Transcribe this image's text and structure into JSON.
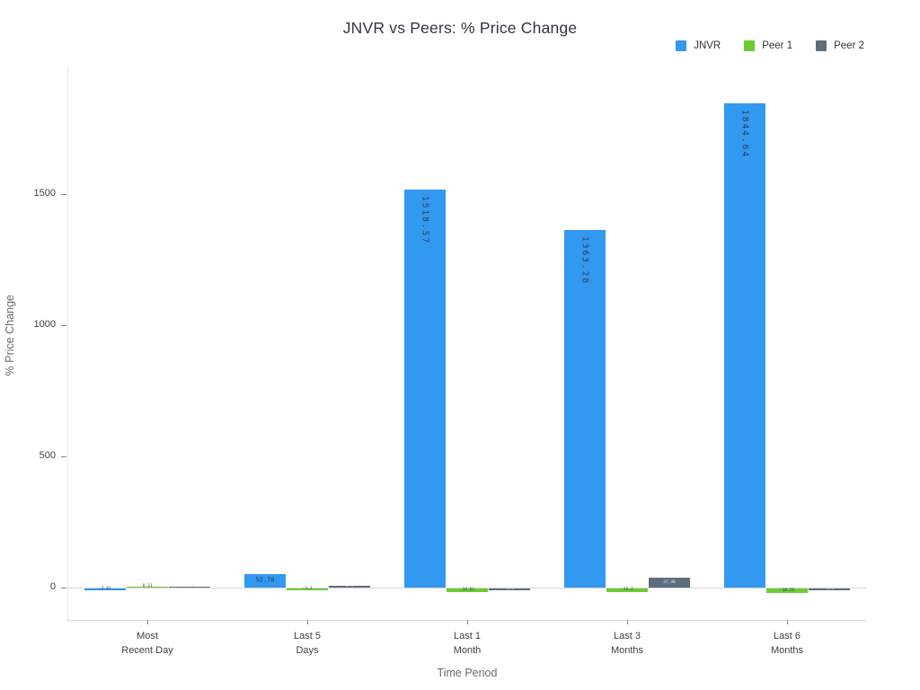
{
  "chart_data": {
    "type": "bar",
    "title": "JNVR vs Peers: % Price Change",
    "xlabel": "Time Period",
    "ylabel": "% Price Change",
    "categories": [
      "Most Recent Day",
      "Last 5 Days",
      "Last 1 Month",
      "Last 3 Months",
      "Last 6 Months"
    ],
    "category_tick_lines": [
      [
        "Most",
        "Recent Day"
      ],
      [
        "Last 5",
        "Days"
      ],
      [
        "Last 1",
        "Month"
      ],
      [
        "Last 3",
        "Months"
      ],
      [
        "Last 6",
        "Months"
      ]
    ],
    "series": [
      {
        "name": "JNVR",
        "color": "#3398f0",
        "values": [
          -2.61,
          52.78,
          1518.57,
          1363.28,
          1844.64
        ],
        "labels": [
          "-2.61",
          "52.78",
          "1518.57",
          "1363.28",
          "1844.64"
        ]
      },
      {
        "name": "Peer 1",
        "color": "#6ccc33",
        "values": [
          0.31,
          -3.1,
          -14.61,
          -15.2,
          -18.26
        ],
        "labels": [
          "0.31",
          "-3.1",
          "-14.61",
          "-15.2",
          "-18.26"
        ]
      },
      {
        "name": "Peer 2",
        "color": "#5d6d7e",
        "values": [
          4.9,
          5.4,
          -2.4,
          37.48,
          -8.1
        ],
        "labels": [
          "4.9",
          "5.4",
          "-2.4",
          "37.48",
          "-8.1"
        ]
      }
    ],
    "yticks": [
      0,
      500,
      1000,
      1500
    ],
    "ylim": [
      -120,
      1980
    ],
    "grid": false,
    "legend_position": "top-right"
  }
}
